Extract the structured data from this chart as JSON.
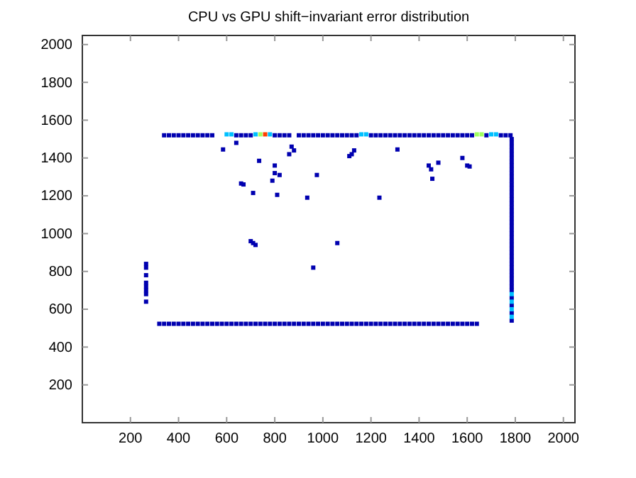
{
  "chart_data": {
    "type": "scatter",
    "title": "CPU vs GPU shift−invariant error distribution",
    "xlim": [
      0,
      2048
    ],
    "ylim": [
      0,
      2048
    ],
    "xticks": [
      200,
      400,
      600,
      800,
      1000,
      1200,
      1400,
      1600,
      1800,
      2000
    ],
    "yticks": [
      200,
      400,
      600,
      800,
      1000,
      1200,
      1400,
      1600,
      1800,
      2000
    ],
    "grid": false,
    "marker": "square",
    "series": [
      {
        "color": "#0000b0",
        "x": [
          340,
          360,
          380,
          400,
          420,
          440,
          460,
          480,
          500,
          520,
          540,
          640,
          660,
          680,
          700,
          800,
          820,
          840,
          860,
          900,
          920,
          940,
          960,
          980,
          1000,
          1020,
          1040,
          1060,
          1080,
          1100,
          1120,
          1140,
          1200,
          1220,
          1240,
          1260,
          1280,
          1300,
          1320,
          1340,
          1360,
          1380,
          1400,
          1420,
          1440,
          1460,
          1480,
          1500,
          1520,
          1540,
          1560,
          1580,
          1600,
          1620,
          1680,
          1740,
          1760,
          1780
        ],
        "values": [
          1520,
          1520,
          1520,
          1520,
          1520,
          1520,
          1520,
          1520,
          1520,
          1520,
          1520,
          1520,
          1520,
          1520,
          1520,
          1520,
          1520,
          1520,
          1520,
          1520,
          1520,
          1520,
          1520,
          1520,
          1520,
          1520,
          1520,
          1520,
          1520,
          1520,
          1520,
          1520,
          1520,
          1520,
          1520,
          1520,
          1520,
          1520,
          1520,
          1520,
          1520,
          1520,
          1520,
          1520,
          1520,
          1520,
          1520,
          1520,
          1520,
          1520,
          1520,
          1520,
          1520,
          1520,
          1520,
          1520,
          1520,
          1520
        ]
      },
      {
        "color": "#0000b0",
        "x": [
          1785,
          1785,
          1785,
          1785,
          1785,
          1785,
          1785,
          1785,
          1785,
          1785,
          1785,
          1785,
          1785,
          1785,
          1785,
          1785,
          1785,
          1785,
          1785,
          1785,
          1785,
          1785,
          1785,
          1785,
          1785,
          1785,
          1785,
          1785,
          1785,
          1785,
          1785,
          1785,
          1785,
          1785,
          1785,
          1785,
          1785,
          1785,
          1785,
          1785,
          1785,
          1785,
          1785,
          1785,
          1785
        ],
        "values": [
          1500,
          1480,
          1460,
          1440,
          1420,
          1400,
          1380,
          1360,
          1340,
          1320,
          1300,
          1280,
          1260,
          1240,
          1220,
          1200,
          1180,
          1160,
          1140,
          1120,
          1100,
          1080,
          1060,
          1040,
          1020,
          1000,
          980,
          960,
          940,
          920,
          900,
          880,
          860,
          840,
          820,
          800,
          780,
          760,
          740,
          720,
          700,
          660,
          620,
          580,
          540
        ]
      },
      {
        "color": "#0000b0",
        "x": [
          320,
          340,
          360,
          380,
          400,
          420,
          440,
          460,
          480,
          500,
          520,
          540,
          560,
          580,
          600,
          620,
          640,
          660,
          680,
          700,
          720,
          740,
          760,
          780,
          800,
          820,
          840,
          860,
          880,
          900,
          920,
          940,
          960,
          980,
          1000,
          1020,
          1040,
          1060,
          1080,
          1100,
          1120,
          1140,
          1160,
          1180,
          1200,
          1220,
          1240,
          1260,
          1280,
          1300,
          1320,
          1340,
          1360,
          1380,
          1400,
          1420,
          1440,
          1460,
          1480,
          1500,
          1520,
          1540,
          1560,
          1580,
          1600,
          1620,
          1640
        ],
        "values": [
          523,
          523,
          523,
          523,
          523,
          523,
          523,
          523,
          523,
          523,
          523,
          523,
          523,
          523,
          523,
          523,
          523,
          523,
          523,
          523,
          523,
          523,
          523,
          523,
          523,
          523,
          523,
          523,
          523,
          523,
          523,
          523,
          523,
          523,
          523,
          523,
          523,
          523,
          523,
          523,
          523,
          523,
          523,
          523,
          523,
          523,
          523,
          523,
          523,
          523,
          523,
          523,
          523,
          523,
          523,
          523,
          523,
          523,
          523,
          523,
          523,
          523,
          523,
          523,
          523,
          523,
          523
        ]
      },
      {
        "color": "#0000b0",
        "x": [
          265,
          265,
          265,
          265,
          265,
          265,
          265,
          265
        ],
        "values": [
          640,
          680,
          700,
          720,
          740,
          780,
          820,
          840
        ]
      },
      {
        "color": "#0000b0",
        "x": [
          640,
          585,
          660,
          670,
          710,
          735,
          700,
          710,
          720,
          790,
          800,
          800,
          810,
          820,
          860,
          870,
          880,
          935,
          960,
          975,
          1060,
          1110,
          1130,
          1120,
          1235,
          1310,
          1440,
          1450,
          1455,
          1480,
          1580,
          1600,
          1610
        ],
        "values": [
          1480,
          1445,
          1265,
          1260,
          1215,
          1385,
          960,
          950,
          940,
          1280,
          1360,
          1320,
          1205,
          1310,
          1420,
          1460,
          1440,
          1190,
          820,
          1310,
          950,
          1410,
          1440,
          1420,
          1190,
          1445,
          1360,
          1340,
          1290,
          1375,
          1400,
          1360,
          1355
        ]
      },
      {
        "color": "#00c0ff",
        "x": [
          600,
          620,
          720,
          780,
          1160,
          1180,
          1700,
          1720,
          1785,
          1785,
          1785,
          1785
        ],
        "values": [
          1525,
          1525,
          1525,
          1525,
          1525,
          1525,
          1525,
          1525,
          560,
          600,
          640,
          680
        ]
      },
      {
        "color": "#a0ff60",
        "x": [
          740,
          1640,
          1660
        ],
        "values": [
          1525,
          1525,
          1525
        ]
      },
      {
        "color": "#ff4000",
        "x": [
          760
        ],
        "values": [
          1525
        ]
      }
    ]
  }
}
